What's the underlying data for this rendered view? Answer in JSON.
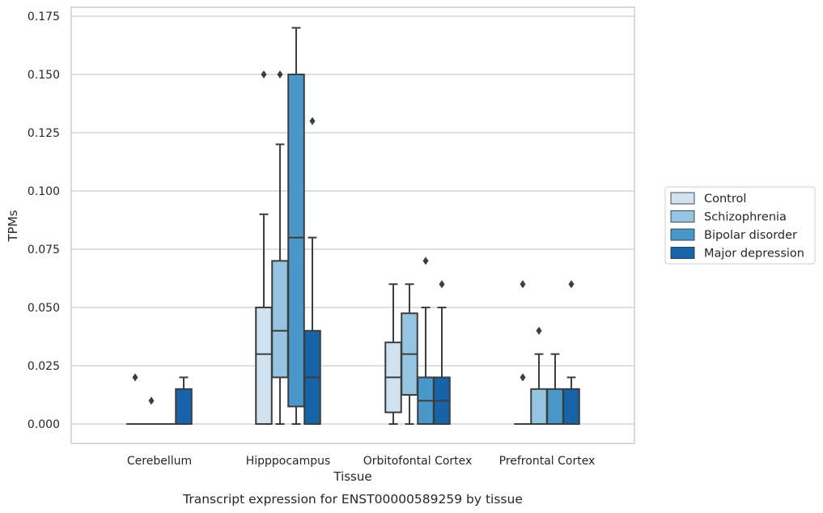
{
  "chart_data": {
    "type": "box",
    "caption": "Transcript expression for ENST00000589259 by tissue",
    "xlabel": "Tissue",
    "ylabel": "TPMs",
    "ylim": [
      -0.0165,
      0.1775
    ],
    "yticks": [
      "0.000",
      "0.025",
      "0.050",
      "0.075",
      "0.100",
      "0.125",
      "0.150",
      "0.175"
    ],
    "ytick_values": [
      0,
      0.025,
      0.05,
      0.075,
      0.1,
      0.125,
      0.15,
      0.175
    ],
    "grid": true,
    "legend_position": "right",
    "categories": [
      "Cerebellum",
      "Hipppocampus",
      "Orbitofontal Cortex",
      "Prefrontal Cortex"
    ],
    "series": [
      {
        "name": "Control",
        "color": "#d0e1f2",
        "boxes": [
          {
            "q1": 0,
            "median": 0,
            "q3": 0,
            "whislo": 0,
            "whishi": 0,
            "fliers": [
              0.02
            ]
          },
          {
            "q1": 0,
            "median": 0.03,
            "q3": 0.05,
            "whislo": 0,
            "whishi": 0.09,
            "fliers": [
              0.15
            ]
          },
          {
            "q1": 0.005,
            "median": 0.02,
            "q3": 0.035,
            "whislo": 0,
            "whishi": 0.06,
            "fliers": []
          },
          {
            "q1": 0,
            "median": 0,
            "q3": 0,
            "whislo": 0,
            "whishi": 0,
            "fliers": [
              0.02,
              0.06
            ]
          }
        ]
      },
      {
        "name": "Schizophrenia",
        "color": "#94c4df",
        "boxes": [
          {
            "q1": 0,
            "median": 0,
            "q3": 0,
            "whislo": 0,
            "whishi": 0,
            "fliers": [
              0.01
            ]
          },
          {
            "q1": 0.02,
            "median": 0.04,
            "q3": 0.07,
            "whislo": 0,
            "whishi": 0.12,
            "fliers": [
              0.15
            ]
          },
          {
            "q1": 0.0125,
            "median": 0.03,
            "q3": 0.0475,
            "whislo": 0,
            "whishi": 0.06,
            "fliers": []
          },
          {
            "q1": 0,
            "median": 0,
            "q3": 0.015,
            "whislo": 0,
            "whishi": 0.03,
            "fliers": [
              0.04
            ]
          }
        ]
      },
      {
        "name": "Bipolar disorder",
        "color": "#4a98c9",
        "boxes": [
          {
            "q1": 0,
            "median": 0,
            "q3": 0,
            "whislo": 0,
            "whishi": 0,
            "fliers": []
          },
          {
            "q1": 0.0075,
            "median": 0.08,
            "q3": 0.15,
            "whislo": 0,
            "whishi": 0.17,
            "fliers": []
          },
          {
            "q1": 0,
            "median": 0.01,
            "q3": 0.02,
            "whislo": 0,
            "whishi": 0.05,
            "fliers": [
              0.07
            ]
          },
          {
            "q1": 0,
            "median": 0,
            "q3": 0.015,
            "whislo": 0,
            "whishi": 0.03,
            "fliers": []
          }
        ]
      },
      {
        "name": "Major depression",
        "color": "#1764ab",
        "boxes": [
          {
            "q1": 0,
            "median": 0,
            "q3": 0.015,
            "whislo": 0,
            "whishi": 0.02,
            "fliers": []
          },
          {
            "q1": 0,
            "median": 0.02,
            "q3": 0.04,
            "whislo": 0,
            "whishi": 0.08,
            "fliers": [
              0.13
            ]
          },
          {
            "q1": 0,
            "median": 0.01,
            "q3": 0.02,
            "whislo": 0,
            "whishi": 0.05,
            "fliers": [
              0.06
            ]
          },
          {
            "q1": 0,
            "median": 0,
            "q3": 0.015,
            "whislo": 0,
            "whishi": 0.02,
            "fliers": [
              0.06
            ]
          }
        ]
      }
    ]
  }
}
